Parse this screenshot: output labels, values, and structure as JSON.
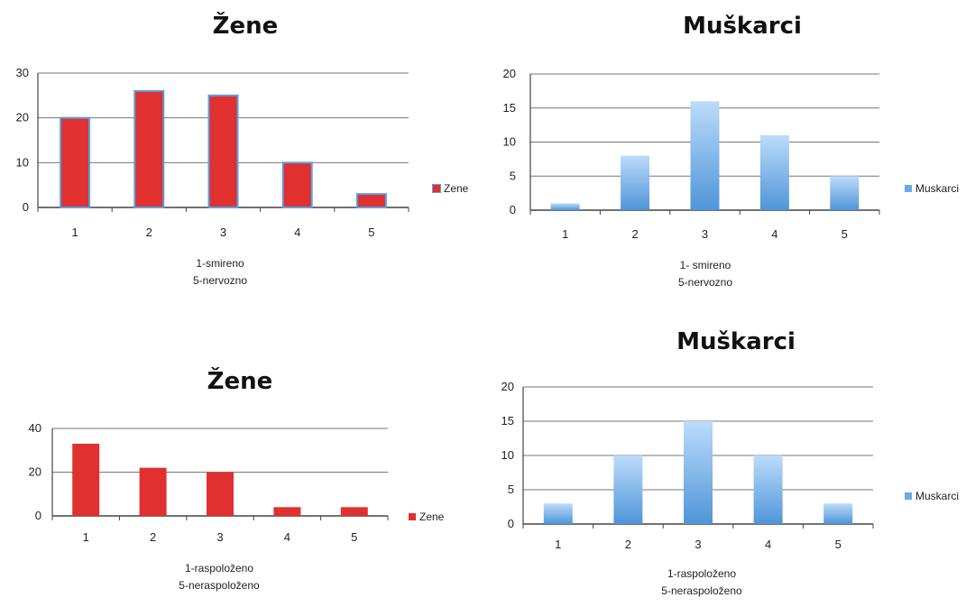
{
  "chart_data": [
    {
      "type": "bar",
      "title": "Žene",
      "categories": [
        "1",
        "2",
        "3",
        "4",
        "5"
      ],
      "series": [
        {
          "name": "Zene",
          "values": [
            20,
            26,
            25,
            10,
            3
          ]
        }
      ],
      "ylim": [
        0,
        30
      ],
      "yticks": [
        0,
        10,
        20,
        30
      ],
      "xlabel_lines": [
        "1-smireno",
        "5-nervozno"
      ],
      "legend": "right",
      "grid": true,
      "colors": {
        "fill": "#e03030",
        "stroke": "#5aa0e0"
      }
    },
    {
      "type": "bar",
      "title": "Muškarci",
      "categories": [
        "1",
        "2",
        "3",
        "4",
        "5"
      ],
      "series": [
        {
          "name": "Muskarci",
          "values": [
            1,
            8,
            16,
            11,
            5
          ]
        }
      ],
      "ylim": [
        0,
        20
      ],
      "yticks": [
        0,
        5,
        10,
        15,
        20
      ],
      "xlabel_lines": [
        "1- smireno",
        "5-nervozno"
      ],
      "legend": "right",
      "grid": true,
      "colors": {
        "fill_top": "#bcdcfb",
        "fill_bottom": "#4f95d8"
      }
    },
    {
      "type": "bar",
      "title": "Žene",
      "categories": [
        "1",
        "2",
        "3",
        "4",
        "5"
      ],
      "series": [
        {
          "name": "Zene",
          "values": [
            33,
            22,
            20,
            4,
            4
          ]
        }
      ],
      "ylim": [
        0,
        40
      ],
      "yticks": [
        0,
        20,
        40
      ],
      "xlabel_lines": [
        "1-raspoloženo",
        "5-neraspoloženo"
      ],
      "legend": "right",
      "grid": true,
      "colors": {
        "fill": "#e03030"
      }
    },
    {
      "type": "bar",
      "title": "Muškarci",
      "categories": [
        "1",
        "2",
        "3",
        "4",
        "5"
      ],
      "series": [
        {
          "name": "Muskarci",
          "values": [
            3,
            10,
            15,
            10,
            3
          ]
        }
      ],
      "ylim": [
        0,
        20
      ],
      "yticks": [
        0,
        5,
        10,
        15,
        20
      ],
      "xlabel_lines": [
        "1-raspoloženo",
        "5-neraspoloženo"
      ],
      "legend": "right",
      "grid": true,
      "colors": {
        "fill_top": "#bcdcfb",
        "fill_bottom": "#4f95d8"
      }
    }
  ]
}
